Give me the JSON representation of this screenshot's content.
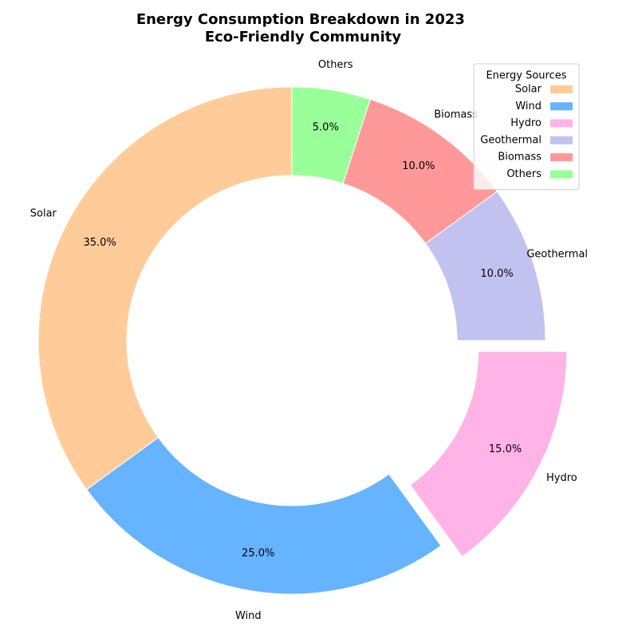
{
  "chart_data": {
    "type": "pie",
    "title": "Energy Consumption Breakdown in 2023\nEco-Friendly Community",
    "title_lines": [
      "Energy Consumption Breakdown in 2023",
      "Eco-Friendly Community"
    ],
    "categories": [
      "Solar",
      "Wind",
      "Hydro",
      "Geothermal",
      "Biomass",
      "Others"
    ],
    "values": [
      35,
      25,
      15,
      10,
      10,
      5
    ],
    "percent_labels": [
      "35.0%",
      "25.0%",
      "15.0%",
      "10.0%",
      "10.0%",
      "5.0%"
    ],
    "colors": [
      "#ffcc99",
      "#66b3ff",
      "#ffb3e6",
      "#c2c2f0",
      "#ff9999",
      "#99ff99"
    ],
    "exploded": [
      "Hydro"
    ],
    "donut": true,
    "legend": {
      "title": "Energy Sources",
      "entries": [
        "Solar",
        "Wind",
        "Hydro",
        "Geothermal",
        "Biomass",
        "Others"
      ],
      "placement": "top-right"
    }
  }
}
